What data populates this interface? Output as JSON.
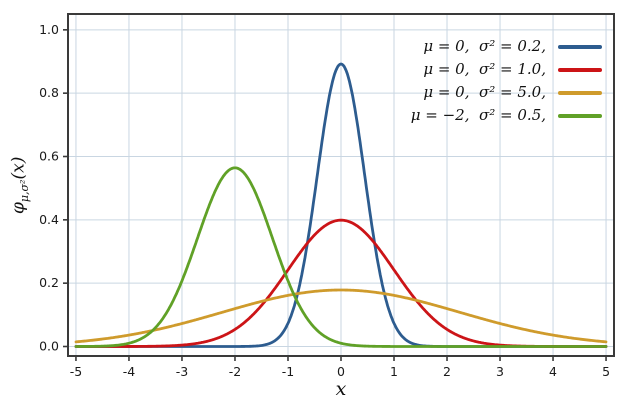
{
  "chart_data": {
    "type": "line",
    "title": "",
    "xlabel": "x",
    "ylabel": "φ_{μ,σ²}(x)",
    "ylabel_phi": "φ",
    "ylabel_sub": "μ,σ²",
    "ylabel_arg": "(x)",
    "xlim": [
      -5,
      5
    ],
    "ylim": [
      0,
      1.0
    ],
    "x_ticks": [
      -5,
      -4,
      -3,
      -2,
      -1,
      0,
      1,
      2,
      3,
      4,
      5
    ],
    "x_tick_labels": [
      "-5",
      "-4",
      "-3",
      "-2",
      "-1",
      "0",
      "1",
      "2",
      "3",
      "4",
      "5"
    ],
    "y_ticks": [
      0.0,
      0.2,
      0.4,
      0.6,
      0.8,
      1.0
    ],
    "y_tick_labels": [
      "0.0",
      "0.2",
      "0.4",
      "0.6",
      "0.8",
      "1.0"
    ],
    "grid": true,
    "legend_position": "top-right",
    "curve_formula": "normal_pdf: f(x) = exp(-(x-mu)^2/(2*sigma2)) / sqrt(2*pi*sigma2)",
    "series": [
      {
        "name": "μ = 0,  σ² = 0.2,",
        "mu": 0,
        "sigma2": 0.2,
        "peak_x": 0,
        "peak_y": 0.89,
        "color": "#2d5c8f"
      },
      {
        "name": "μ = 0,  σ² = 1.0,",
        "mu": 0,
        "sigma2": 1.0,
        "peak_x": 0,
        "peak_y": 0.4,
        "color": "#cc1417"
      },
      {
        "name": "μ = 0,  σ² = 5.0,",
        "mu": 0,
        "sigma2": 5.0,
        "peak_x": 0,
        "peak_y": 0.18,
        "color": "#cf9b2c"
      },
      {
        "name": "μ = −2,  σ² = 0.5,",
        "mu": -2,
        "sigma2": 0.5,
        "peak_x": -2,
        "peak_y": 0.56,
        "color": "#60a127"
      }
    ],
    "colors": {
      "grid": "#c9d6e2",
      "frame": "#3a3a3a",
      "tick_text": "#1a1a1a",
      "background": "#ffffff"
    }
  }
}
